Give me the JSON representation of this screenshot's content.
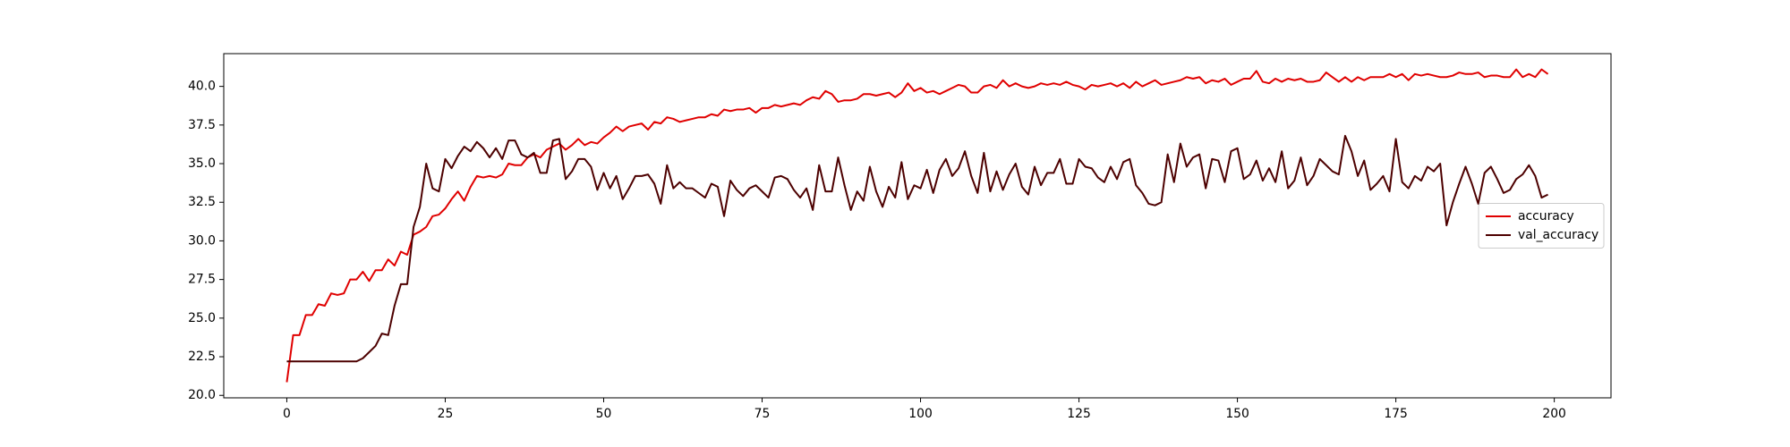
{
  "chart_data": {
    "type": "line",
    "x": [
      0,
      1,
      2,
      3,
      4,
      5,
      6,
      7,
      8,
      9,
      10,
      11,
      12,
      13,
      14,
      15,
      16,
      17,
      18,
      19,
      20,
      21,
      22,
      23,
      24,
      25,
      26,
      27,
      28,
      29,
      30,
      31,
      32,
      33,
      34,
      35,
      36,
      37,
      38,
      39,
      40,
      41,
      42,
      43,
      44,
      45,
      46,
      47,
      48,
      49,
      50,
      51,
      52,
      53,
      54,
      55,
      56,
      57,
      58,
      59,
      60,
      61,
      62,
      63,
      64,
      65,
      66,
      67,
      68,
      69,
      70,
      71,
      72,
      73,
      74,
      75,
      76,
      77,
      78,
      79,
      80,
      81,
      82,
      83,
      84,
      85,
      86,
      87,
      88,
      89,
      90,
      91,
      92,
      93,
      94,
      95,
      96,
      97,
      98,
      99,
      100,
      101,
      102,
      103,
      104,
      105,
      106,
      107,
      108,
      109,
      110,
      111,
      112,
      113,
      114,
      115,
      116,
      117,
      118,
      119,
      120,
      121,
      122,
      123,
      124,
      125,
      126,
      127,
      128,
      129,
      130,
      131,
      132,
      133,
      134,
      135,
      136,
      137,
      138,
      139,
      140,
      141,
      142,
      143,
      144,
      145,
      146,
      147,
      148,
      149,
      150,
      151,
      152,
      153,
      154,
      155,
      156,
      157,
      158,
      159,
      160,
      161,
      162,
      163,
      164,
      165,
      166,
      167,
      168,
      169,
      170,
      171,
      172,
      173,
      174,
      175,
      176,
      177,
      178,
      179,
      180,
      181,
      182,
      183,
      184,
      185,
      186,
      187,
      188,
      189,
      190,
      191,
      192,
      193,
      194,
      195,
      196,
      197,
      198,
      199
    ],
    "series": [
      {
        "name": "accuracy",
        "color": "#e00000",
        "values": [
          20.85,
          23.9,
          23.9,
          25.2,
          25.2,
          25.9,
          25.8,
          26.6,
          26.5,
          26.6,
          27.5,
          27.5,
          28.0,
          27.4,
          28.1,
          28.1,
          28.8,
          28.4,
          29.3,
          29.1,
          30.4,
          30.6,
          30.9,
          31.6,
          31.7,
          32.1,
          32.7,
          33.2,
          32.6,
          33.5,
          34.2,
          34.1,
          34.2,
          34.1,
          34.3,
          35.0,
          34.9,
          34.9,
          35.4,
          35.6,
          35.4,
          35.9,
          36.1,
          36.3,
          35.9,
          36.2,
          36.6,
          36.2,
          36.4,
          36.3,
          36.7,
          37.0,
          37.4,
          37.1,
          37.4,
          37.5,
          37.6,
          37.2,
          37.7,
          37.6,
          38.0,
          37.9,
          37.7,
          37.8,
          37.9,
          38.0,
          38.0,
          38.2,
          38.1,
          38.5,
          38.4,
          38.5,
          38.5,
          38.6,
          38.3,
          38.6,
          38.6,
          38.8,
          38.7,
          38.8,
          38.9,
          38.8,
          39.1,
          39.3,
          39.2,
          39.7,
          39.5,
          39.0,
          39.1,
          39.1,
          39.2,
          39.5,
          39.5,
          39.4,
          39.5,
          39.6,
          39.3,
          39.6,
          40.2,
          39.7,
          39.9,
          39.6,
          39.7,
          39.5,
          39.7,
          39.9,
          40.1,
          40.0,
          39.6,
          39.6,
          40.0,
          40.1,
          39.9,
          40.4,
          40.0,
          40.2,
          40.0,
          39.9,
          40.0,
          40.2,
          40.1,
          40.2,
          40.1,
          40.3,
          40.1,
          40.0,
          39.8,
          40.1,
          40.0,
          40.1,
          40.2,
          40.0,
          40.2,
          39.9,
          40.3,
          40.0,
          40.2,
          40.4,
          40.1,
          40.2,
          40.3,
          40.4,
          40.6,
          40.5,
          40.6,
          40.2,
          40.4,
          40.3,
          40.5,
          40.1,
          40.3,
          40.5,
          40.5,
          41.0,
          40.3,
          40.2,
          40.5,
          40.3,
          40.5,
          40.4,
          40.5,
          40.3,
          40.3,
          40.4,
          40.9,
          40.6,
          40.3,
          40.6,
          40.3,
          40.6,
          40.4,
          40.6,
          40.6,
          40.6,
          40.8,
          40.6,
          40.8,
          40.4,
          40.8,
          40.7,
          40.8,
          40.7,
          40.6,
          40.6,
          40.7,
          40.9,
          40.8,
          40.8,
          40.9,
          40.6,
          40.7,
          40.7,
          40.6,
          40.6,
          41.1,
          40.6,
          40.8,
          40.6,
          41.1,
          40.8
        ]
      },
      {
        "name": "val_accuracy",
        "color": "#4d0000",
        "values": [
          22.2,
          22.2,
          22.2,
          22.2,
          22.2,
          22.2,
          22.2,
          22.2,
          22.2,
          22.2,
          22.2,
          22.2,
          22.4,
          22.8,
          23.2,
          24.0,
          23.9,
          25.8,
          27.2,
          27.2,
          30.9,
          32.2,
          35.0,
          33.4,
          33.2,
          35.3,
          34.7,
          35.5,
          36.1,
          35.8,
          36.4,
          36.0,
          35.4,
          36.0,
          35.3,
          36.5,
          36.5,
          35.6,
          35.4,
          35.7,
          34.4,
          34.4,
          36.5,
          36.6,
          34.0,
          34.5,
          35.3,
          35.3,
          34.8,
          33.3,
          34.4,
          33.4,
          34.2,
          32.7,
          33.4,
          34.2,
          34.2,
          34.3,
          33.7,
          32.4,
          34.9,
          33.4,
          33.8,
          33.4,
          33.4,
          33.1,
          32.8,
          33.7,
          33.5,
          31.6,
          33.9,
          33.3,
          32.9,
          33.4,
          33.6,
          33.2,
          32.8,
          34.1,
          34.2,
          34.0,
          33.3,
          32.8,
          33.4,
          32.0,
          34.9,
          33.2,
          33.2,
          35.4,
          33.6,
          32.0,
          33.2,
          32.6,
          34.8,
          33.2,
          32.2,
          33.5,
          32.8,
          35.1,
          32.7,
          33.6,
          33.4,
          34.6,
          33.1,
          34.6,
          35.3,
          34.2,
          34.7,
          35.8,
          34.2,
          33.1,
          35.7,
          33.2,
          34.5,
          33.3,
          34.3,
          35.0,
          33.5,
          33.0,
          34.8,
          33.6,
          34.4,
          34.4,
          35.3,
          33.7,
          33.7,
          35.3,
          34.8,
          34.7,
          34.1,
          33.8,
          34.8,
          34.0,
          35.1,
          35.3,
          33.6,
          33.1,
          32.4,
          32.3,
          32.5,
          35.6,
          33.8,
          36.3,
          34.8,
          35.4,
          35.6,
          33.4,
          35.3,
          35.2,
          33.8,
          35.8,
          36.0,
          34.0,
          34.3,
          35.2,
          33.9,
          34.7,
          33.8,
          35.8,
          33.4,
          33.9,
          35.4,
          33.6,
          34.2,
          35.3,
          34.9,
          34.5,
          34.3,
          36.8,
          35.8,
          34.2,
          35.2,
          33.3,
          33.7,
          34.2,
          33.2,
          36.6,
          33.8,
          33.4,
          34.2,
          33.9,
          34.8,
          34.5,
          35.0,
          31.0,
          32.5,
          33.7,
          34.8,
          33.7,
          32.4,
          34.4,
          34.8,
          34.0,
          33.1,
          33.3,
          34.0,
          34.3,
          34.9,
          34.2,
          32.8,
          33.0
        ]
      }
    ],
    "xlim": [
      -9.95,
      208.95
    ],
    "xticks": [
      0,
      25,
      50,
      75,
      100,
      125,
      150,
      175,
      200
    ],
    "ylim": [
      19.84,
      42.12
    ],
    "yticks": [
      {
        "value": 20,
        "label": "20.0"
      },
      22.5,
      {
        "value": 25,
        "label": "25.0"
      },
      27.5,
      {
        "value": 30,
        "label": "30.0"
      },
      32.5,
      {
        "value": 35,
        "label": "35.0"
      },
      37.5,
      {
        "value": 40,
        "label": "40.0"
      }
    ],
    "grid": false,
    "legend": "center right"
  }
}
